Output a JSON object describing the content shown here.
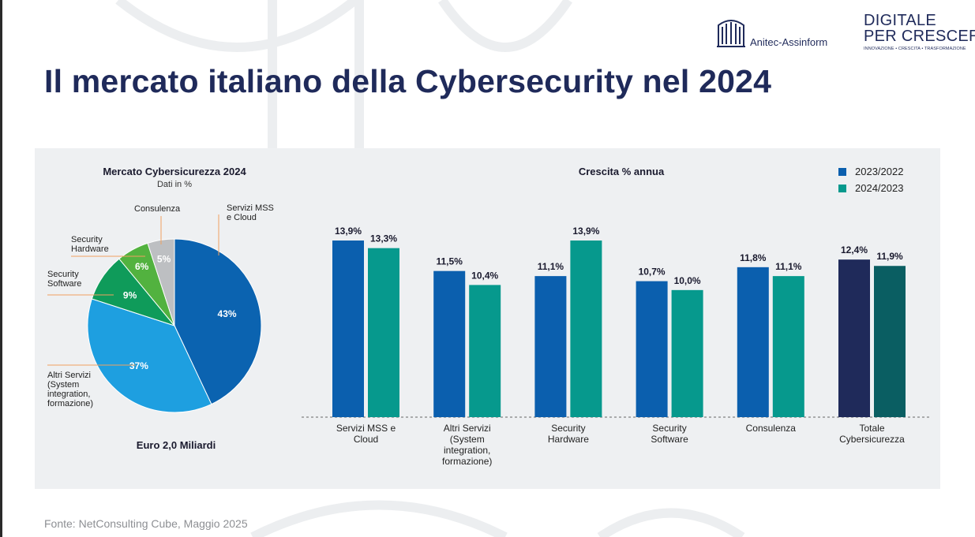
{
  "page": {
    "title": "Il mercato italiano della Cybersecurity nel 2024",
    "source": "Fonte: NetConsulting Cube, Maggio 2025",
    "logos": {
      "anitec": "Anitec-Assinform",
      "digitale_line1": "DIGITALE",
      "digitale_line2": "PER CRESCERE",
      "digitale_tagline": "INNOVAZIONE • CRESCITA • TRASFORMAZIONE"
    }
  },
  "chart_data": [
    {
      "type": "pie",
      "title": "Mercato Cybersicurezza 2024",
      "subtitle": "Dati in %",
      "footer": "Euro 2,0 Miliardi",
      "slices": [
        {
          "label": "Servizi MSS e Cloud",
          "label_lines": [
            "Servizi MSS",
            "e Cloud"
          ],
          "value": 43,
          "value_label": "43%",
          "color": "#0b63b0"
        },
        {
          "label": "Altri Servizi (System integration, formazione)",
          "label_lines": [
            "Altri Servizi",
            "(System",
            "integration,",
            "formazione)"
          ],
          "value": 37,
          "value_label": "37%",
          "color": "#1e9fe0"
        },
        {
          "label": "Security Software",
          "label_lines": [
            "Security",
            "Software"
          ],
          "value": 9,
          "value_label": "9%",
          "color": "#0f9b5a"
        },
        {
          "label": "Security Hardware",
          "label_lines": [
            "Security",
            "Hardware"
          ],
          "value": 6,
          "value_label": "6%",
          "color": "#52b23f"
        },
        {
          "label": "Consulenza",
          "label_lines": [
            "Consulenza"
          ],
          "value": 5,
          "value_label": "5%",
          "color": "#bdbfc2"
        }
      ]
    },
    {
      "type": "bar",
      "title": "Crescita % annua",
      "legend_position": "top-right",
      "categories": [
        [
          "Servizi MSS e",
          "Cloud"
        ],
        [
          "Altri Servizi",
          "(System",
          "integration,",
          "formazione)"
        ],
        [
          "Security",
          "Hardware"
        ],
        [
          "Security",
          "Software"
        ],
        [
          "Consulenza"
        ],
        [
          "Totale",
          "Cybersicurezza"
        ]
      ],
      "series": [
        {
          "name": "2023/2022",
          "values": [
            13.9,
            11.5,
            11.1,
            10.7,
            11.8,
            12.4
          ],
          "value_labels": [
            "13,9%",
            "11,5%",
            "11,1%",
            "10,7%",
            "11,8%",
            "12,4%"
          ],
          "color": "#0b5fae",
          "highlight_color": "#1f2a5a"
        },
        {
          "name": "2024/2023",
          "values": [
            13.3,
            10.4,
            13.9,
            10.0,
            11.1,
            11.9
          ],
          "value_labels": [
            "13,3%",
            "10,4%",
            "13,9%",
            "10,0%",
            "11,1%",
            "11,9%"
          ],
          "color": "#06998d",
          "highlight_color": "#0a5e62"
        }
      ],
      "highlight_category_index": 5
    }
  ]
}
